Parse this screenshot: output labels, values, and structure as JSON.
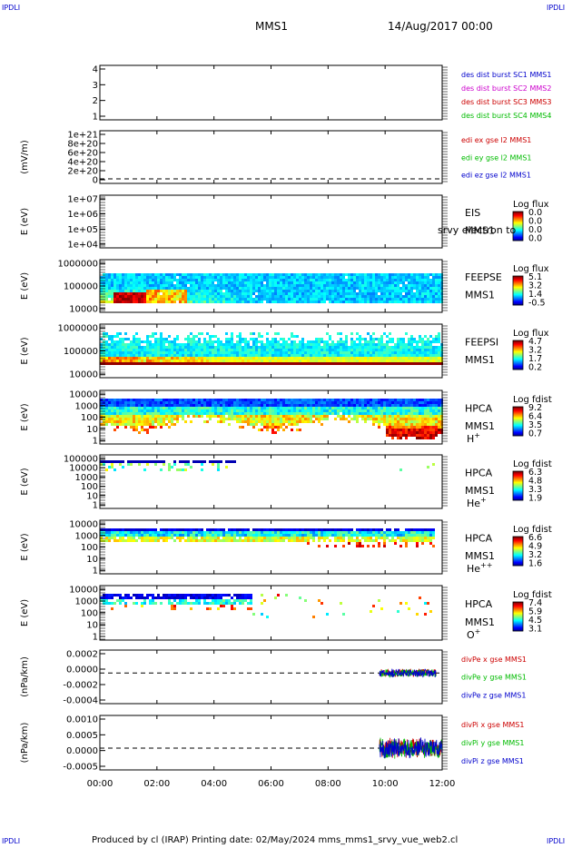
{
  "corner_labels": {
    "tl": "IPDLI",
    "tr": "IPDLI",
    "bl": "IPDLI",
    "br": "IPDLI"
  },
  "header": {
    "spacecraft": "MMS1",
    "date": "14/Aug/2017 00:00"
  },
  "footer": {
    "text": "Produced by cl (IRAP)   Printing date: 02/May/2024   mms_mms1_srvy_vue_web2.cl"
  },
  "x_axis": {
    "ticks": [
      "00:00",
      "02:00",
      "04:00",
      "06:00",
      "08:00",
      "10:00",
      "12:00"
    ],
    "range_hours": [
      0,
      12
    ]
  },
  "colors": {
    "blue": "#0000cc",
    "magenta": "#cc00cc",
    "red": "#cc0000",
    "green": "#00bb00"
  },
  "chart_data": [
    {
      "id": "p1",
      "type": "line",
      "ylabel": "",
      "yticks": [
        "4",
        "3",
        "2",
        "1"
      ],
      "ylim": [
        0.5,
        4.5
      ],
      "legend": [
        {
          "text": "des dist burst SC1 MMS1",
          "color": "#0000cc"
        },
        {
          "text": "des dist burst SC2 MMS2",
          "color": "#cc00cc"
        },
        {
          "text": "des dist burst SC3 MMS3",
          "color": "#cc0000"
        },
        {
          "text": "des dist burst SC4 MMS4",
          "color": "#00bb00"
        }
      ],
      "series": []
    },
    {
      "id": "p2",
      "type": "line",
      "ylabel": "(mV/m)",
      "yticks": [
        "1e+21",
        "8e+20",
        "6e+20",
        "4e+20",
        "2e+20",
        "0"
      ],
      "ylim": [
        0,
        1.1e+21
      ],
      "zero_line": true,
      "legend": [
        {
          "text": "edi ex gse l2 MMS1",
          "color": "#cc0000"
        },
        {
          "text": "edi ey gse l2 MMS1",
          "color": "#00bb00"
        },
        {
          "text": "edi ez gse l2 MMS1",
          "color": "#0000cc"
        }
      ],
      "series": []
    },
    {
      "id": "p3",
      "type": "heatmap",
      "ylabel": "E (eV)",
      "yticks": [
        "1e+07",
        "1e+06",
        "1e+05",
        "1e+04"
      ],
      "labels": [
        "EIS",
        "MMS1"
      ],
      "overlay_text": "srvy electron to",
      "colorbar": {
        "title": "Log flux",
        "ticks": [
          "0.0",
          "0.0",
          "0.0",
          "0.0"
        ]
      }
    },
    {
      "id": "p4",
      "type": "heatmap",
      "ylabel": "E (eV)",
      "yticks": [
        "1000000",
        "100000",
        "10000"
      ],
      "labels": [
        "FEEPSE",
        "MMS1"
      ],
      "colorbar": {
        "title": "Log flux",
        "ticks": [
          "5.1",
          "3.2",
          "1.4",
          "-0.5"
        ]
      }
    },
    {
      "id": "p5",
      "type": "heatmap",
      "ylabel": "E (eV)",
      "yticks": [
        "1000000",
        "100000",
        "10000"
      ],
      "labels": [
        "FEEPSI",
        "MMS1"
      ],
      "colorbar": {
        "title": "Log flux",
        "ticks": [
          "4.7",
          "3.2",
          "1.7",
          "0.2"
        ]
      }
    },
    {
      "id": "p6",
      "type": "heatmap",
      "ylabel": "E (eV)",
      "yticks": [
        "10000",
        "1000",
        "100",
        "10",
        "1"
      ],
      "labels": [
        "HPCA",
        "MMS1"
      ],
      "species": "H",
      "species_sup": "+",
      "colorbar": {
        "title": "Log fdist",
        "ticks": [
          "9.2",
          "6.4",
          "3.5",
          "0.7"
        ]
      }
    },
    {
      "id": "p7",
      "type": "heatmap",
      "ylabel": "E (eV)",
      "yticks": [
        "100000",
        "10000",
        "1000",
        "100",
        "10",
        "1"
      ],
      "labels": [
        "HPCA",
        "MMS1"
      ],
      "species": "He",
      "species_sup": "+",
      "colorbar": {
        "title": "Log fdist",
        "ticks": [
          "6.3",
          "4.8",
          "3.3",
          "1.9"
        ]
      }
    },
    {
      "id": "p8",
      "type": "heatmap",
      "ylabel": "E (eV)",
      "yticks": [
        "10000",
        "1000",
        "100",
        "10",
        "1"
      ],
      "labels": [
        "HPCA",
        "MMS1"
      ],
      "species": "He",
      "species_sup": "++",
      "colorbar": {
        "title": "Log fdist",
        "ticks": [
          "6.6",
          "4.9",
          "3.2",
          "1.6"
        ]
      }
    },
    {
      "id": "p9",
      "type": "heatmap",
      "ylabel": "E (eV)",
      "yticks": [
        "10000",
        "1000",
        "100",
        "10",
        "1"
      ],
      "labels": [
        "HPCA",
        "MMS1"
      ],
      "species": "O",
      "species_sup": "+",
      "colorbar": {
        "title": "Log fdist",
        "ticks": [
          "7.4",
          "5.9",
          "4.5",
          "3.1"
        ]
      }
    },
    {
      "id": "p10",
      "type": "line",
      "ylabel": "(nPa/km)",
      "yticks": [
        "0.0002",
        "0.0000",
        "-0.0002",
        "-0.0004"
      ],
      "ylim": [
        -0.0004,
        0.0003
      ],
      "zero_line": true,
      "legend": [
        {
          "text": "divPe x gse MMS1",
          "color": "#cc0000"
        },
        {
          "text": "divPe y gse MMS1",
          "color": "#00bb00"
        },
        {
          "text": "divPe z gse MMS1",
          "color": "#0000cc"
        }
      ],
      "data_start_hour": 9.8,
      "data_end_hour": 11.8
    },
    {
      "id": "p11",
      "type": "line",
      "ylabel": "(nPa/km)",
      "yticks": [
        "0.0010",
        "0.0005",
        "0.0000",
        "-0.0005"
      ],
      "ylim": [
        -0.0008,
        0.0012
      ],
      "zero_line": true,
      "legend": [
        {
          "text": "divPi x gse MMS1",
          "color": "#cc0000"
        },
        {
          "text": "divPi y gse MMS1",
          "color": "#00bb00"
        },
        {
          "text": "divPi z gse MMS1",
          "color": "#0000cc"
        }
      ],
      "data_start_hour": 9.8,
      "data_end_hour": 12.0
    }
  ]
}
